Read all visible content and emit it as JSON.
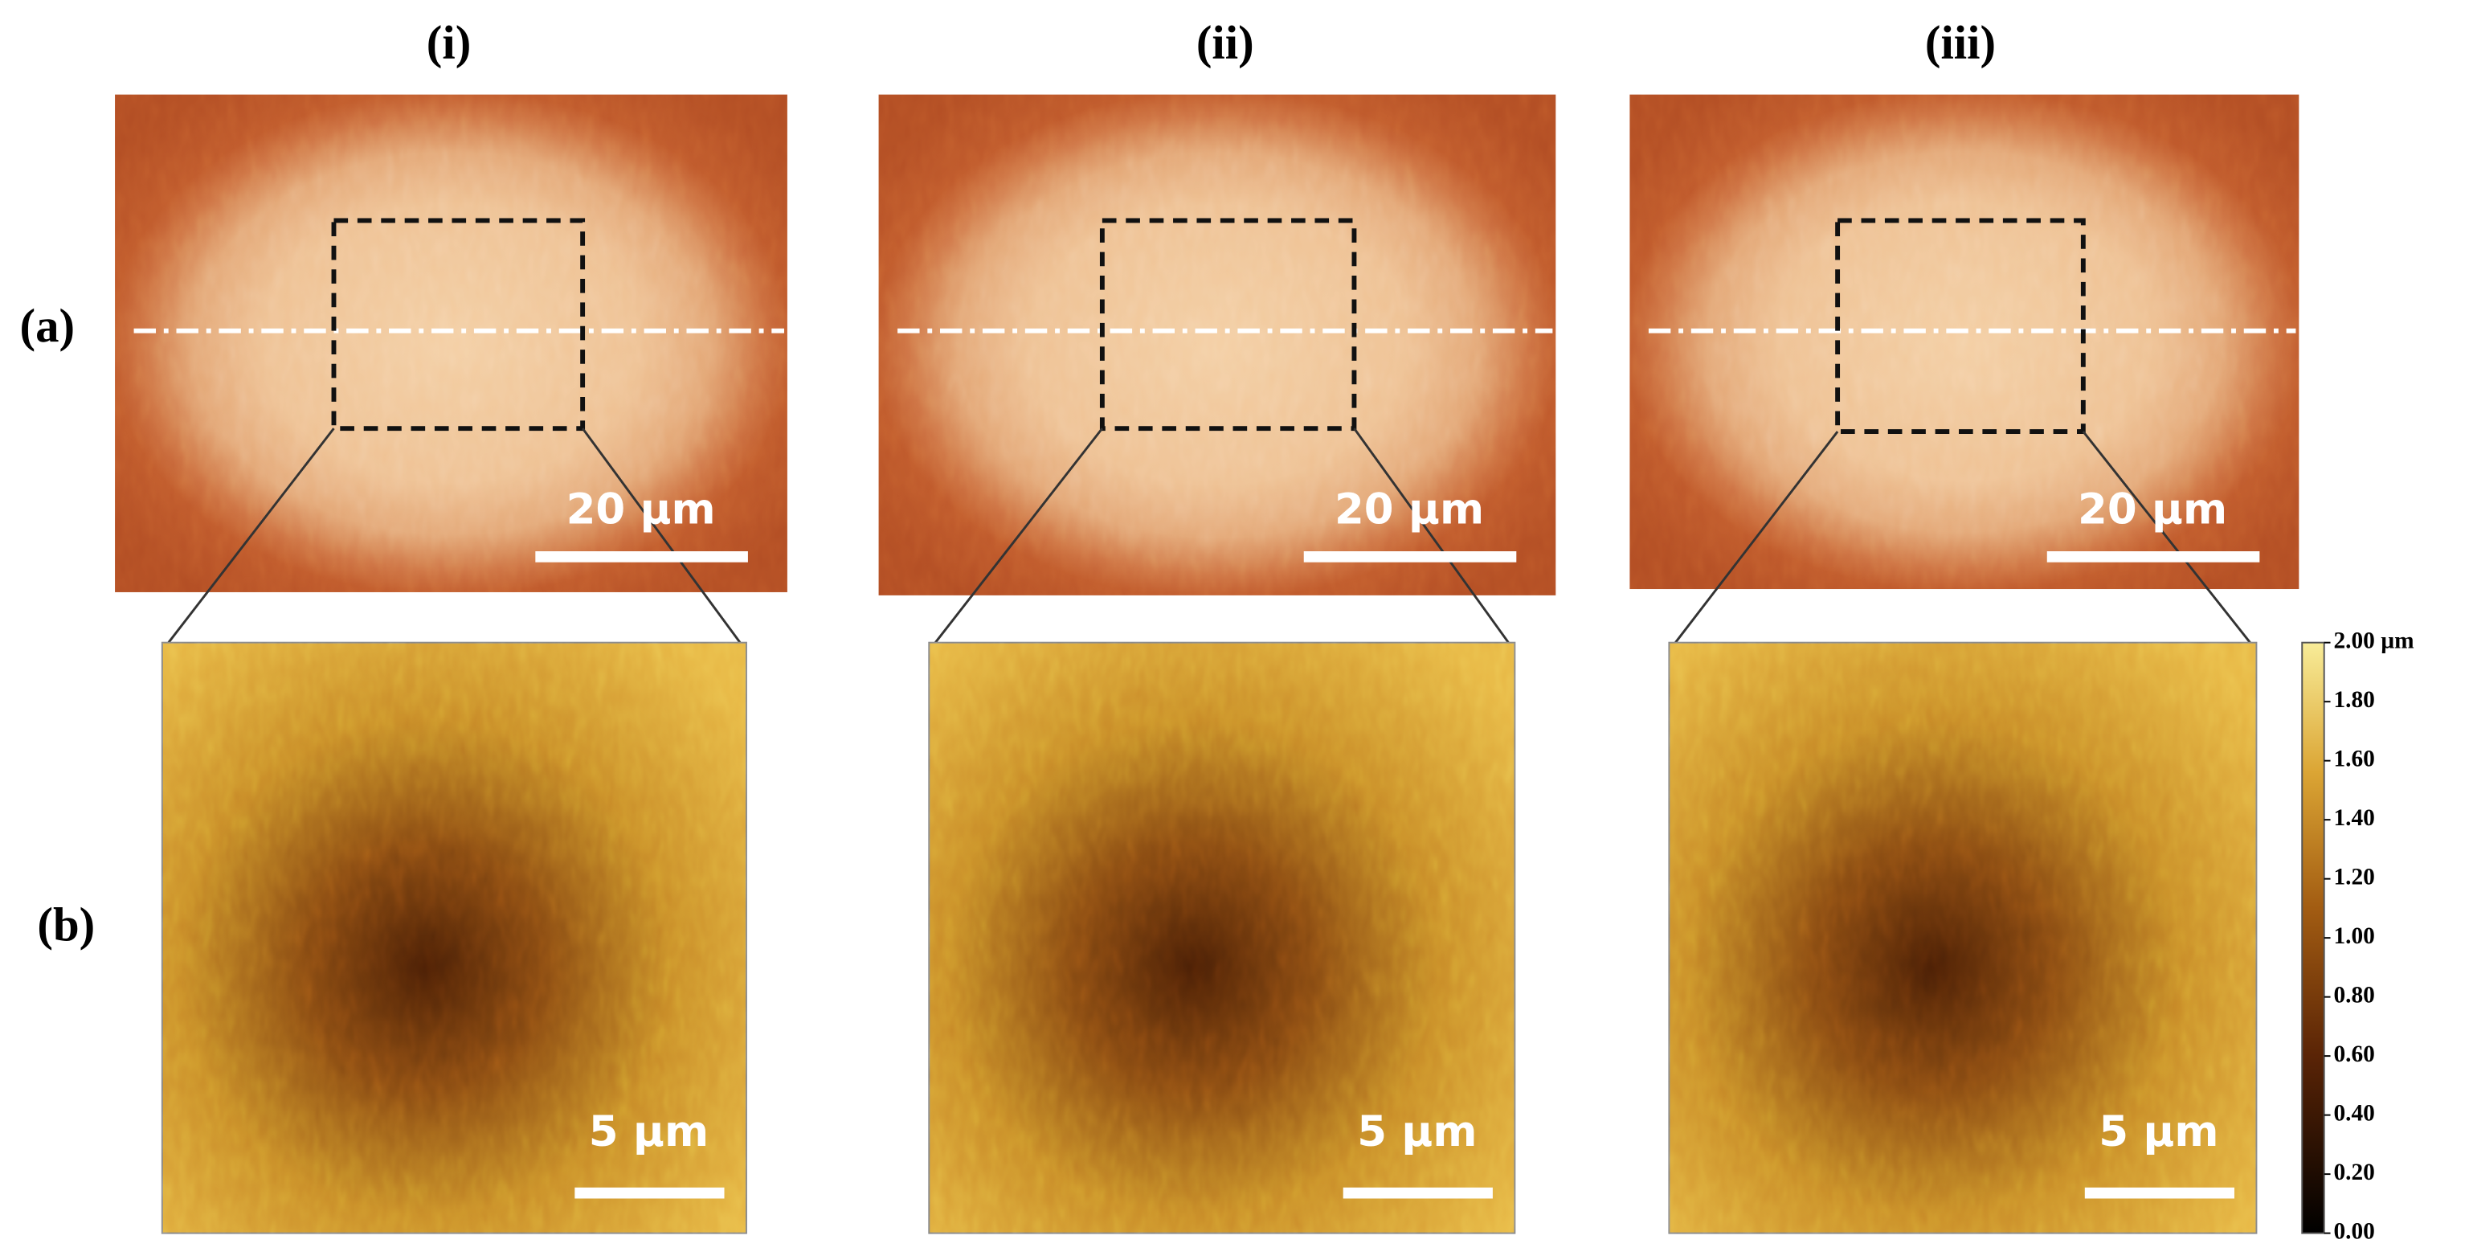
{
  "columns": [
    "(i)",
    "(ii)",
    "(iii)"
  ],
  "rows": [
    "(a)",
    "(b)"
  ],
  "panels_a": {
    "scale_bars": [
      "20 µm",
      "20 µm",
      "20 µm"
    ]
  },
  "panels_b": {
    "scale_bars": [
      "5 µm",
      "5 µm",
      "5 µm"
    ]
  },
  "colorbar": {
    "top_label": "2.00 µm",
    "ticks": [
      "0.00",
      "0.20",
      "0.40",
      "0.60",
      "0.80",
      "1.00",
      "1.20",
      "1.40",
      "1.60",
      "1.80"
    ]
  }
}
